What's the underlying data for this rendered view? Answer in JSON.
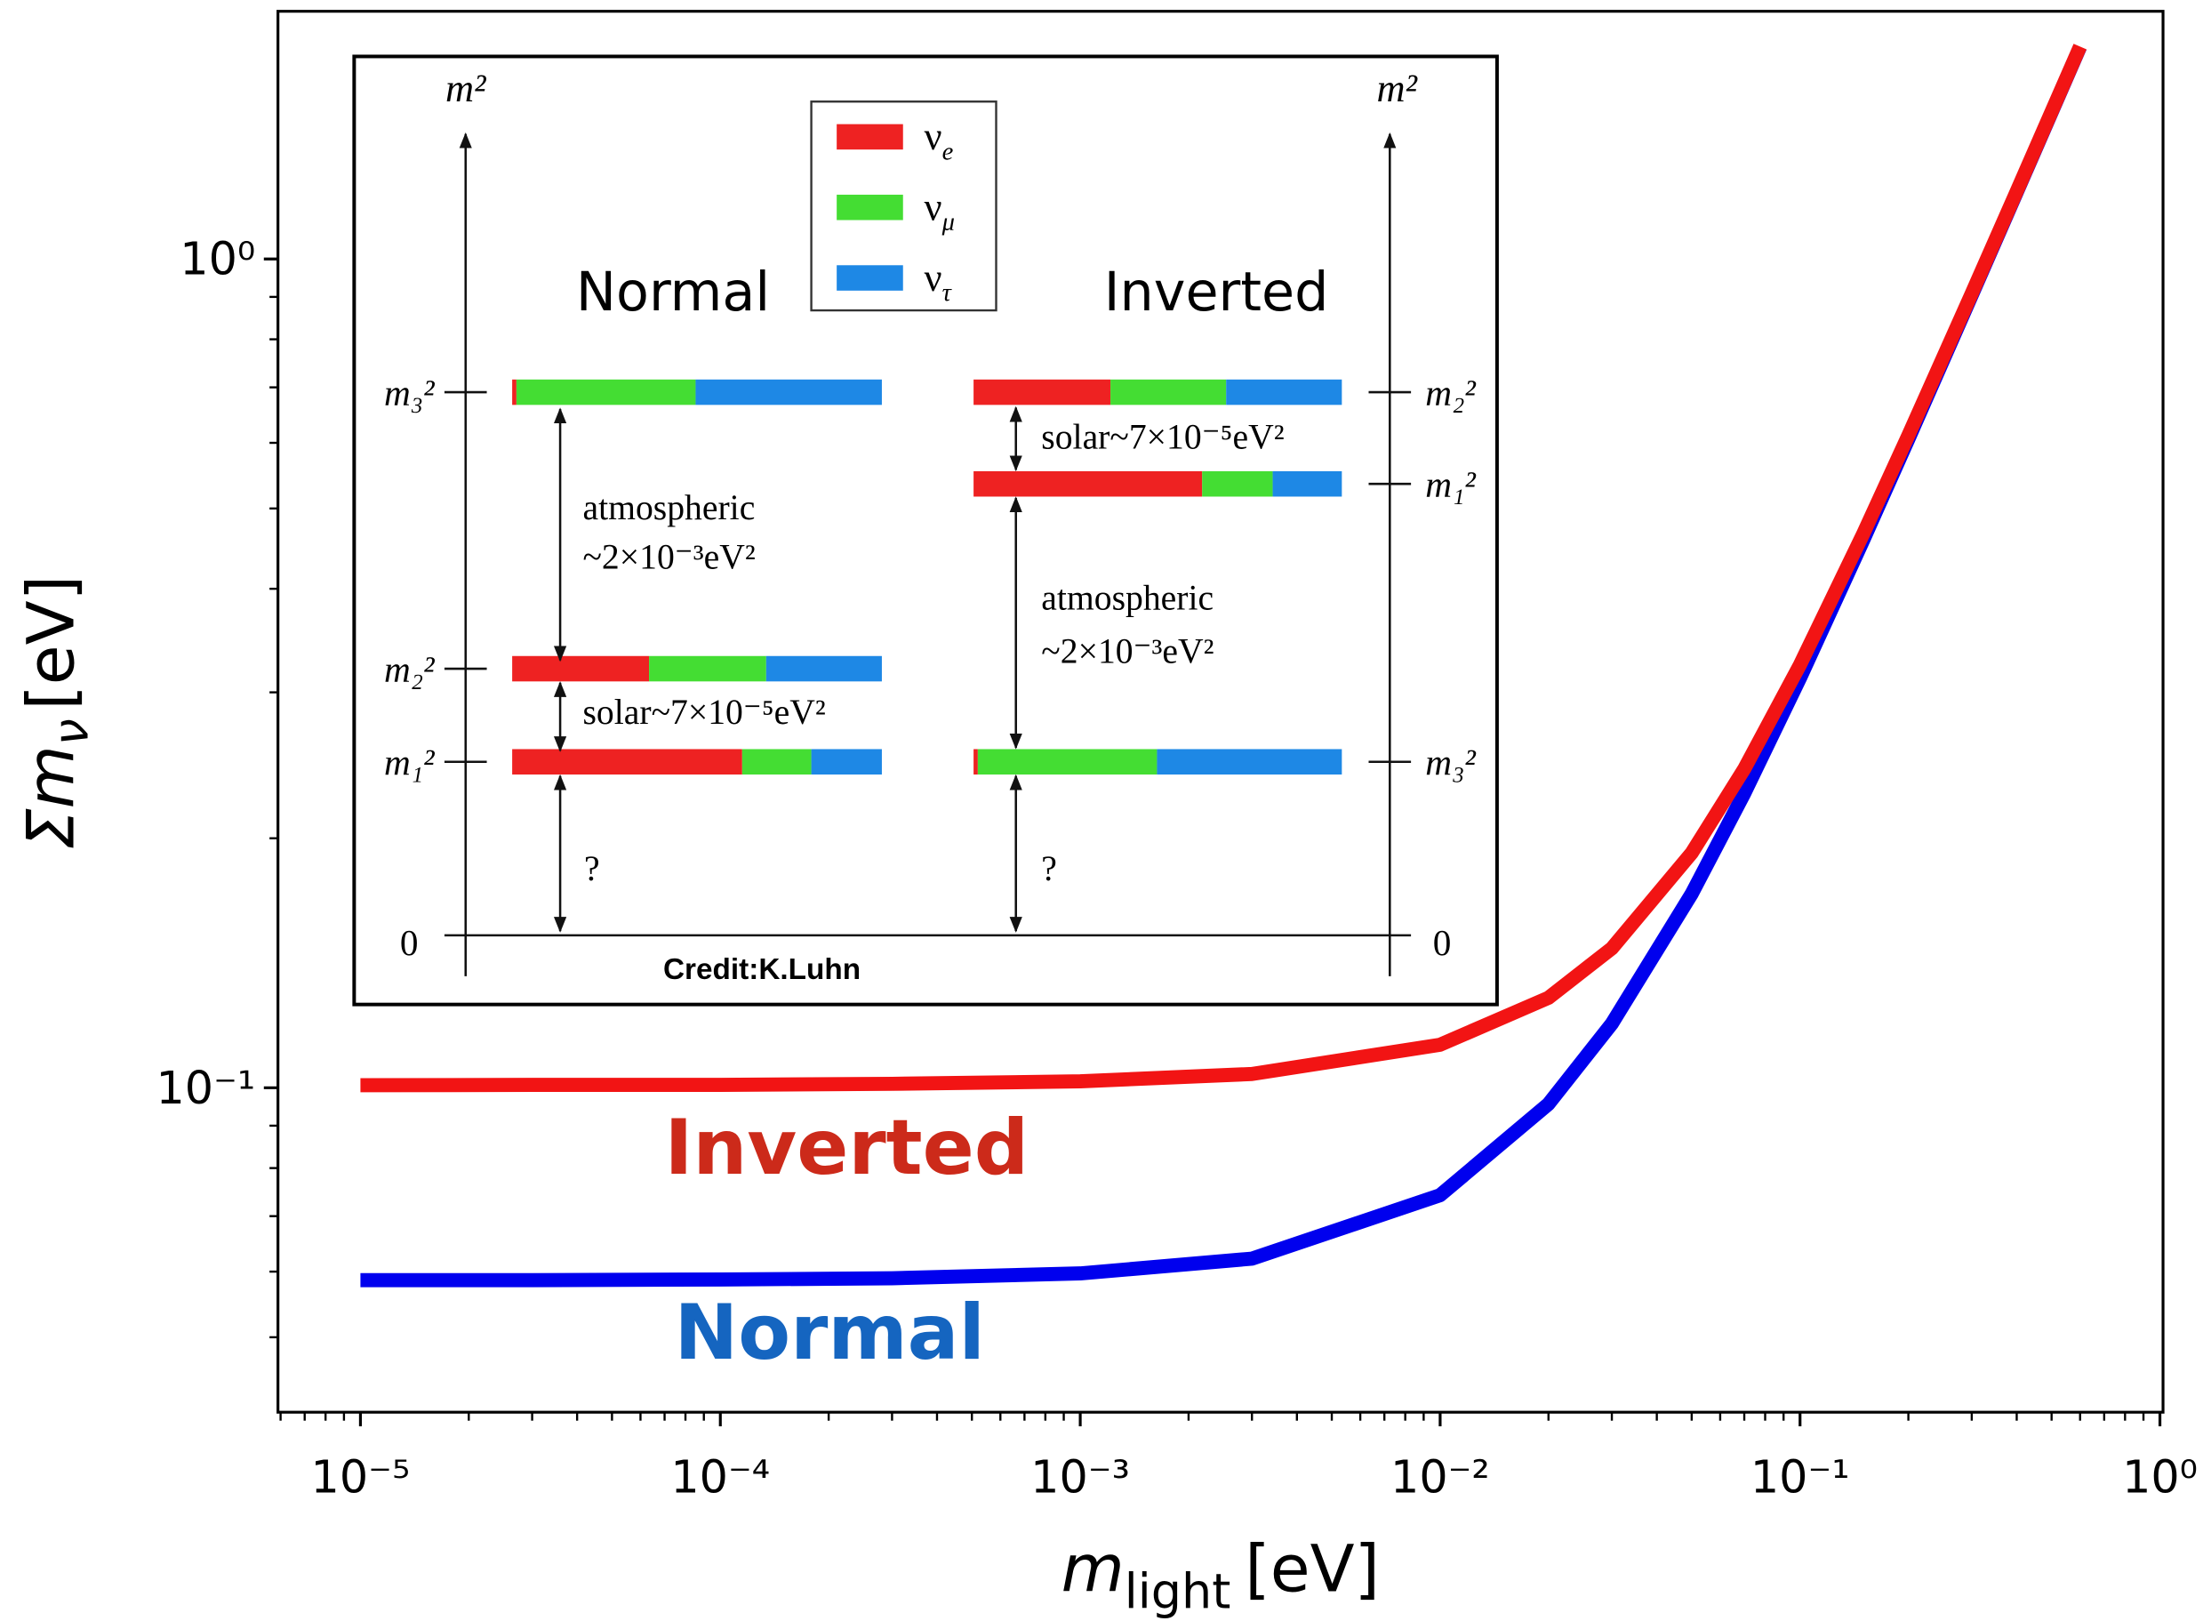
{
  "chart_data": {
    "type": "line",
    "x_label": {
      "base": "m",
      "sub": "light",
      "unit": "[eV]"
    },
    "y_label": {
      "base": "Σm",
      "sub": "ν",
      "unit": "[eV]"
    },
    "log_x": true,
    "log_y": true,
    "xlim": [
      5.9e-06,
      1.02
    ],
    "ylim": [
      0.0406,
      1.99
    ],
    "xticks": [
      {
        "value": 1e-05,
        "label": "10⁻⁵"
      },
      {
        "value": 0.0001,
        "label": "10⁻⁴"
      },
      {
        "value": 0.001,
        "label": "10⁻³"
      },
      {
        "value": 0.01,
        "label": "10⁻²"
      },
      {
        "value": 0.1,
        "label": "10⁻¹"
      },
      {
        "value": 1,
        "label": "10⁰"
      }
    ],
    "yticks": [
      {
        "value": 0.1,
        "label": "10⁻¹"
      },
      {
        "value": 1,
        "label": "10⁰"
      }
    ],
    "xminorticks": [
      6e-06,
      7e-06,
      8e-06,
      9e-06,
      2e-05,
      3e-05,
      4e-05,
      5e-05,
      6e-05,
      7e-05,
      8e-05,
      9e-05,
      0.0002,
      0.0003,
      0.0004,
      0.0005,
      0.0006,
      0.0007,
      0.0008,
      0.0009,
      0.002,
      0.003,
      0.004,
      0.005,
      0.006,
      0.007,
      0.008,
      0.009,
      0.02,
      0.03,
      0.04,
      0.05,
      0.06,
      0.07,
      0.08,
      0.09,
      0.2,
      0.3,
      0.4,
      0.5,
      0.6,
      0.7,
      0.8,
      0.9
    ],
    "yminorticks": [
      0.05,
      0.06,
      0.07,
      0.08,
      0.09,
      0.2,
      0.3,
      0.4,
      0.5,
      0.6,
      0.7,
      0.8,
      0.9
    ],
    "x": [
      1e-05,
      3e-05,
      0.0001,
      0.0003,
      0.001,
      0.003,
      0.01,
      0.02,
      0.03,
      0.05,
      0.07,
      0.1,
      0.15,
      0.2,
      0.3,
      0.4,
      0.6
    ],
    "series": [
      {
        "name": "Normal",
        "color": "#0000ee",
        "label_color": "#1565c0",
        "values": [
          0.0586,
          0.0586,
          0.0587,
          0.0589,
          0.0597,
          0.0622,
          0.0742,
          0.0956,
          0.1195,
          0.1714,
          0.2266,
          0.3122,
          0.4584,
          0.6064,
          0.9043,
          1.2032,
          1.8021
        ]
      },
      {
        "name": "Inverted",
        "color": "#f21414",
        "label_color": "#cc2a1a",
        "values": [
          0.1007,
          0.1008,
          0.1008,
          0.1011,
          0.1018,
          0.1039,
          0.1127,
          0.1284,
          0.1473,
          0.192,
          0.2425,
          0.3239,
          0.4665,
          0.6125,
          0.9084,
          1.2064,
          1.8042
        ]
      }
    ]
  },
  "inset": {
    "axis_label": "m²",
    "zero": "0",
    "orderings": [
      "Normal",
      "Inverted"
    ],
    "flavors": [
      {
        "base": "ν",
        "sub": "e"
      },
      {
        "base": "ν",
        "sub": "μ"
      },
      {
        "base": "ν",
        "sub": "τ"
      }
    ],
    "normal_levels": [
      "m₃²",
      "m₂²",
      "m₁²"
    ],
    "inverted_levels": [
      "m₂²",
      "m₁²",
      "m₃²"
    ],
    "atmospheric": [
      "atmospheric",
      "~2×10⁻³eV²"
    ],
    "solar": "solar~7×10⁻⁵eV²",
    "unknown": "?",
    "credit": "Credit:K.Luhn"
  }
}
